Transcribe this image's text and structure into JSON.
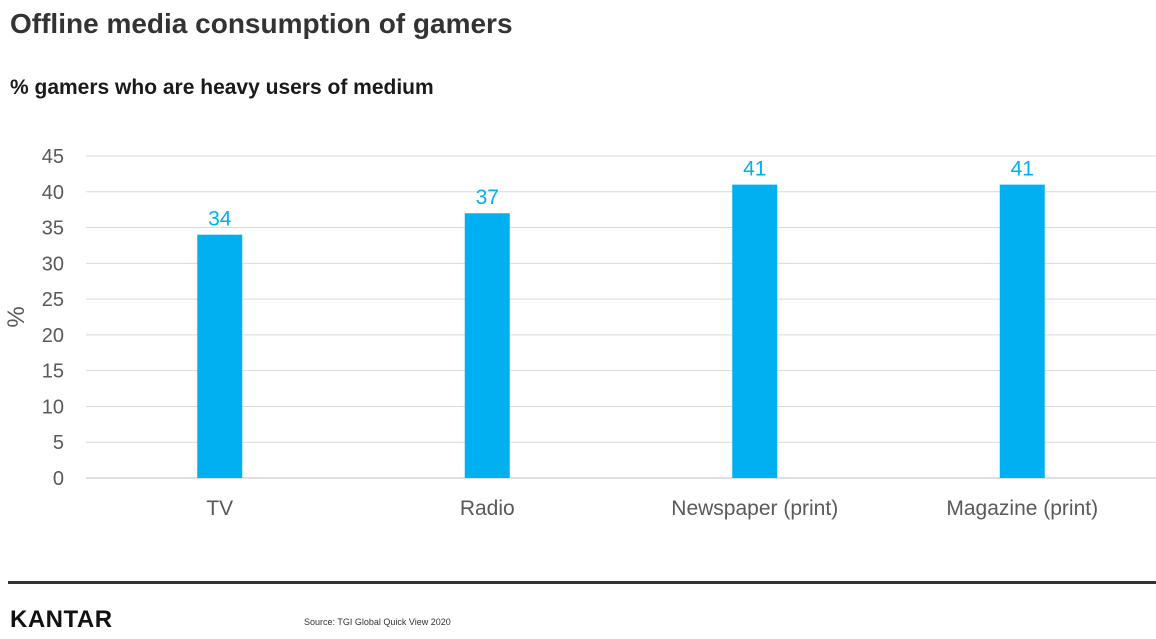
{
  "title": "Offline media consumption of gamers",
  "subtitle": "% gamers who are heavy users of medium",
  "chart_data": {
    "type": "bar",
    "categories": [
      "TV",
      "Radio",
      "Newspaper (print)",
      "Magazine (print)"
    ],
    "values": [
      34,
      37,
      41,
      41
    ],
    "data_labels": [
      "34",
      "37",
      "41",
      "41"
    ],
    "ylabel": "%",
    "xlabel": "",
    "ylim": [
      0,
      45
    ],
    "yticks": [
      0,
      5,
      10,
      15,
      20,
      25,
      30,
      35,
      40,
      45
    ],
    "grid": true,
    "legend": "none",
    "bar_color": "#00B0F0",
    "label_color": "#00B0F0"
  },
  "footer": {
    "brand": "KANTAR",
    "source": "Source: TGI Global Quick View 2020"
  }
}
